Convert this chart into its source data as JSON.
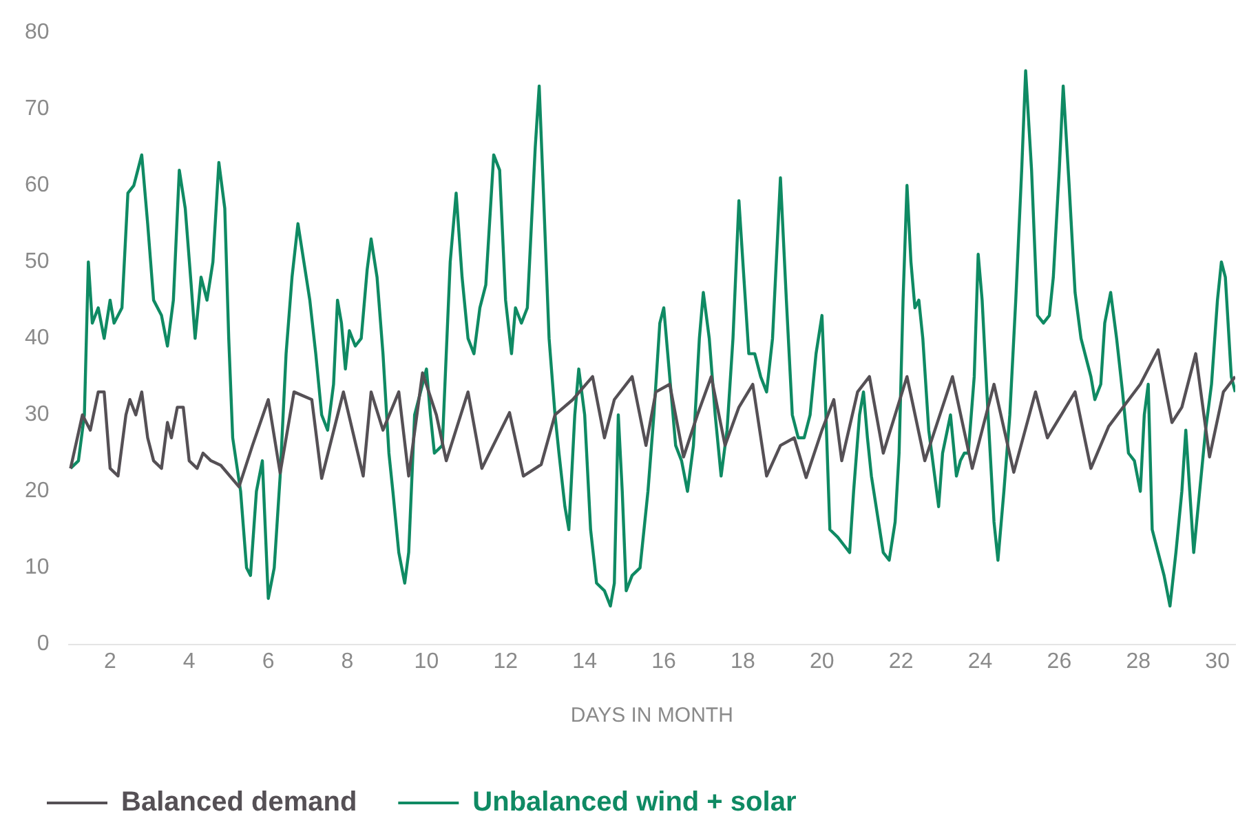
{
  "chart_data": {
    "type": "line",
    "xlabel": "DAYS IN MONTH",
    "xlim": [
      0.95,
      30.45
    ],
    "xticks": [
      2,
      4,
      6,
      8,
      10,
      12,
      14,
      16,
      18,
      20,
      22,
      24,
      26,
      28,
      30
    ],
    "ylim": [
      0,
      80
    ],
    "yticks": [
      0,
      10,
      20,
      30,
      40,
      50,
      60,
      70,
      80
    ],
    "grid": false,
    "legend": "bottom left",
    "marker": "none",
    "line_style": "solid",
    "series": [
      {
        "name": "Balanced demand",
        "color": "#555055",
        "x": [
          1.0,
          1.3,
          1.5,
          1.7,
          1.85,
          2.0,
          2.2,
          2.4,
          2.5,
          2.65,
          2.8,
          2.95,
          3.1,
          3.3,
          3.45,
          3.55,
          3.7,
          3.85,
          4.0,
          4.2,
          4.35,
          4.55,
          4.8,
          5.26,
          5.6,
          6.0,
          6.3,
          6.65,
          7.1,
          7.35,
          7.9,
          8.4,
          8.6,
          8.9,
          9.3,
          9.55,
          9.9,
          10.25,
          10.5,
          11.05,
          11.4,
          12.1,
          12.45,
          12.9,
          13.25,
          13.7,
          14.2,
          14.5,
          14.75,
          15.2,
          15.55,
          15.8,
          16.15,
          16.5,
          16.85,
          17.2,
          17.55,
          17.9,
          18.25,
          18.6,
          18.95,
          19.3,
          19.6,
          20.0,
          20.3,
          20.5,
          20.9,
          21.2,
          21.55,
          22.15,
          22.6,
          23.3,
          23.8,
          24.35,
          24.85,
          25.4,
          25.7,
          26.4,
          26.8,
          27.25,
          28.05,
          28.5,
          28.85,
          29.1,
          29.45,
          29.8,
          30.15,
          30.45
        ],
        "values": [
          23,
          30,
          28,
          33,
          33,
          23,
          22,
          30,
          32,
          30,
          33,
          27,
          24,
          23,
          29,
          27,
          31,
          31,
          24,
          23,
          25,
          24,
          23.4,
          20.6,
          26,
          32,
          22.4,
          33,
          32,
          21.7,
          33,
          22,
          33,
          28,
          33,
          22,
          35.5,
          30,
          24,
          33,
          23,
          30.3,
          22,
          23.5,
          30,
          32,
          35,
          27,
          32,
          35,
          26,
          33,
          34,
          24.5,
          30,
          35,
          26,
          31,
          34,
          22,
          26,
          27,
          21.8,
          28,
          32,
          24,
          33,
          35,
          25,
          35,
          24,
          35,
          23,
          34,
          22.5,
          33,
          27,
          33,
          23,
          28.5,
          34,
          38.5,
          29,
          31,
          38,
          24.5,
          33,
          35
        ]
      },
      {
        "name": "Unbalanced wind + solar",
        "color": "#0f8a63",
        "x": [
          1.0,
          1.2,
          1.35,
          1.45,
          1.55,
          1.7,
          1.85,
          2.0,
          2.1,
          2.3,
          2.45,
          2.6,
          2.8,
          2.95,
          3.1,
          3.3,
          3.45,
          3.6,
          3.75,
          3.9,
          4.05,
          4.15,
          4.3,
          4.45,
          4.6,
          4.75,
          4.9,
          5.0,
          5.1,
          5.3,
          5.45,
          5.55,
          5.7,
          5.85,
          6.0,
          6.15,
          6.3,
          6.45,
          6.6,
          6.75,
          6.9,
          7.05,
          7.2,
          7.35,
          7.5,
          7.65,
          7.75,
          7.85,
          7.95,
          8.05,
          8.2,
          8.35,
          8.5,
          8.6,
          8.75,
          8.9,
          9.05,
          9.15,
          9.3,
          9.45,
          9.55,
          9.7,
          9.85,
          10.0,
          10.1,
          10.2,
          10.4,
          10.6,
          10.75,
          10.9,
          11.05,
          11.2,
          11.35,
          11.5,
          11.7,
          11.85,
          12.0,
          12.15,
          12.25,
          12.4,
          12.55,
          12.75,
          12.85,
          12.95,
          13.1,
          13.25,
          13.35,
          13.5,
          13.6,
          13.75,
          13.85,
          14.0,
          14.15,
          14.3,
          14.5,
          14.65,
          14.75,
          14.85,
          14.95,
          15.05,
          15.2,
          15.4,
          15.6,
          15.75,
          15.9,
          16.0,
          16.1,
          16.3,
          16.45,
          16.6,
          16.75,
          16.9,
          17.0,
          17.15,
          17.3,
          17.45,
          17.6,
          17.75,
          17.9,
          18.05,
          18.15,
          18.3,
          18.45,
          18.6,
          18.75,
          18.95,
          19.1,
          19.25,
          19.4,
          19.55,
          19.7,
          19.85,
          20.0,
          20.1,
          20.2,
          20.4,
          20.55,
          20.7,
          20.8,
          20.95,
          21.05,
          21.15,
          21.25,
          21.4,
          21.55,
          21.7,
          21.85,
          21.95,
          22.05,
          22.15,
          22.25,
          22.35,
          22.45,
          22.55,
          22.7,
          22.85,
          22.95,
          23.05,
          23.25,
          23.4,
          23.5,
          23.6,
          23.7,
          23.85,
          23.95,
          24.05,
          24.2,
          24.35,
          24.45,
          24.6,
          24.75,
          24.9,
          25.05,
          25.15,
          25.3,
          25.45,
          25.6,
          25.75,
          25.85,
          26.0,
          26.1,
          26.25,
          26.4,
          26.55,
          26.65,
          26.8,
          26.9,
          27.05,
          27.15,
          27.3,
          27.45,
          27.6,
          27.75,
          27.9,
          28.05,
          28.15,
          28.25,
          28.35,
          28.5,
          28.65,
          28.8,
          28.95,
          29.1,
          29.2,
          29.3,
          29.4,
          29.55,
          29.7,
          29.85,
          30.0,
          30.1,
          30.2,
          30.35,
          30.45
        ],
        "values": [
          23,
          24,
          30,
          50,
          42,
          44,
          40,
          45,
          42,
          44,
          59,
          60,
          64,
          55,
          45,
          43,
          39,
          45,
          62,
          57,
          47,
          40,
          48,
          45,
          50,
          63,
          57,
          40,
          27,
          20,
          10,
          9,
          20,
          24,
          6,
          10,
          22,
          38,
          48,
          55,
          50,
          45,
          38,
          30,
          28,
          34,
          45,
          42,
          36,
          41,
          39,
          40,
          49,
          53,
          48,
          38,
          25,
          20,
          12,
          8,
          12,
          30,
          33,
          36,
          30,
          25,
          26,
          50,
          59,
          48,
          40,
          38,
          44,
          47,
          64,
          62,
          45,
          38,
          44,
          42,
          44,
          65,
          73,
          60,
          40,
          30,
          25,
          18,
          15,
          30,
          36,
          30,
          15,
          8,
          7,
          5,
          8,
          30,
          20,
          7,
          9,
          10,
          20,
          30,
          42,
          44,
          38,
          26,
          24,
          20,
          26,
          40,
          46,
          40,
          30,
          22,
          28,
          40,
          58,
          46,
          38,
          38,
          35,
          33,
          40,
          61,
          45,
          30,
          27,
          27,
          30,
          38,
          43,
          30,
          15,
          14,
          13,
          12,
          20,
          30,
          33,
          27,
          22,
          17,
          12,
          11,
          16,
          25,
          45,
          60,
          50,
          44,
          45,
          40,
          28,
          22,
          18,
          25,
          30,
          22,
          24,
          25,
          25,
          35,
          51,
          45,
          30,
          16,
          11,
          20,
          30,
          45,
          62,
          75,
          62,
          43,
          42,
          43,
          48,
          62,
          73,
          60,
          46,
          40,
          38,
          35,
          32,
          34,
          42,
          46,
          40,
          33,
          25,
          24,
          20,
          30,
          34,
          15,
          12,
          9,
          5,
          12,
          20,
          28,
          20,
          12,
          20,
          28,
          34,
          45,
          50,
          48,
          35,
          33
        ]
      }
    ]
  }
}
